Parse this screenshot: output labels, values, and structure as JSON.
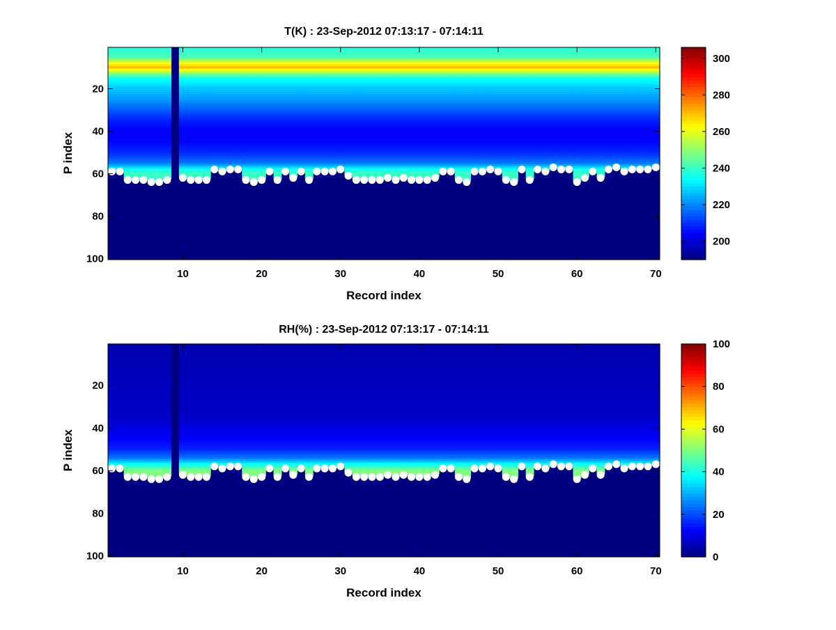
{
  "figure": {
    "background": "#ffffff",
    "marker_color": "#ffffff"
  },
  "chart_data": [
    {
      "type": "heatmap",
      "title": "T(K) : 23-Sep-2012 07:13:17 - 07:14:11",
      "xlabel": "Record index",
      "ylabel": "P index",
      "xlim": [
        1,
        70
      ],
      "ylim": [
        100,
        1
      ],
      "x_ticks": [
        10,
        20,
        30,
        40,
        50,
        60,
        70
      ],
      "y_ticks": [
        20,
        40,
        60,
        80,
        100
      ],
      "colormap": "jet",
      "colorbar": {
        "min": 190,
        "max": 306,
        "ticks": [
          200,
          220,
          240,
          260,
          280,
          300
        ]
      },
      "missing_records": [
        9
      ],
      "profile": [
        {
          "p": 1,
          "value": 238
        },
        {
          "p": 5,
          "value": 242
        },
        {
          "p": 8,
          "value": 262
        },
        {
          "p": 10,
          "value": 270
        },
        {
          "p": 12,
          "value": 255
        },
        {
          "p": 15,
          "value": 235
        },
        {
          "p": 20,
          "value": 227
        },
        {
          "p": 25,
          "value": 222
        },
        {
          "p": 30,
          "value": 215
        },
        {
          "p": 35,
          "value": 208
        },
        {
          "p": 40,
          "value": 204
        },
        {
          "p": 45,
          "value": 205
        },
        {
          "p": 50,
          "value": 209
        },
        {
          "p": 55,
          "value": 218
        },
        {
          "p": 58,
          "value": 235
        },
        {
          "p": 60,
          "value": 240
        }
      ],
      "surface_index": [
        59,
        59,
        63,
        63,
        63,
        64,
        64,
        63,
        null,
        62,
        63,
        63,
        63,
        58,
        59,
        58,
        58,
        63,
        64,
        63,
        59,
        63,
        59,
        62,
        59,
        63,
        59,
        59,
        59,
        58,
        61,
        63,
        63,
        63,
        63,
        62,
        63,
        62,
        63,
        63,
        63,
        62,
        59,
        59,
        63,
        64,
        59,
        59,
        58,
        59,
        63,
        64,
        58,
        63,
        58,
        59,
        57,
        58,
        58,
        64,
        62,
        59,
        62,
        58,
        57,
        59,
        58,
        58,
        58,
        57
      ]
    },
    {
      "type": "heatmap",
      "title": "RH(%) : 23-Sep-2012 07:13:17 - 07:14:11",
      "xlabel": "Record index",
      "ylabel": "P index",
      "xlim": [
        1,
        70
      ],
      "ylim": [
        100,
        1
      ],
      "x_ticks": [
        10,
        20,
        30,
        40,
        50,
        60,
        70
      ],
      "y_ticks": [
        20,
        40,
        60,
        80,
        100
      ],
      "colormap": "jet",
      "colorbar": {
        "min": 0,
        "max": 100,
        "ticks": [
          0,
          20,
          40,
          60,
          80,
          100
        ]
      },
      "missing_records": [
        9
      ],
      "profile": [
        {
          "p": 1,
          "value": 5
        },
        {
          "p": 35,
          "value": 7
        },
        {
          "p": 40,
          "value": 10
        },
        {
          "p": 45,
          "value": 12
        },
        {
          "p": 50,
          "value": 16
        },
        {
          "p": 54,
          "value": 24
        },
        {
          "p": 57,
          "value": 38
        },
        {
          "p": 60,
          "value": 50
        }
      ],
      "surface_index": [
        59,
        59,
        63,
        63,
        63,
        64,
        64,
        63,
        null,
        62,
        63,
        63,
        63,
        58,
        59,
        58,
        58,
        63,
        64,
        63,
        59,
        63,
        59,
        62,
        59,
        63,
        59,
        59,
        59,
        58,
        61,
        63,
        63,
        63,
        63,
        62,
        63,
        62,
        63,
        63,
        63,
        62,
        59,
        59,
        63,
        64,
        59,
        59,
        58,
        59,
        63,
        64,
        58,
        63,
        58,
        59,
        57,
        58,
        58,
        64,
        62,
        59,
        62,
        58,
        57,
        59,
        58,
        58,
        58,
        57
      ]
    }
  ]
}
